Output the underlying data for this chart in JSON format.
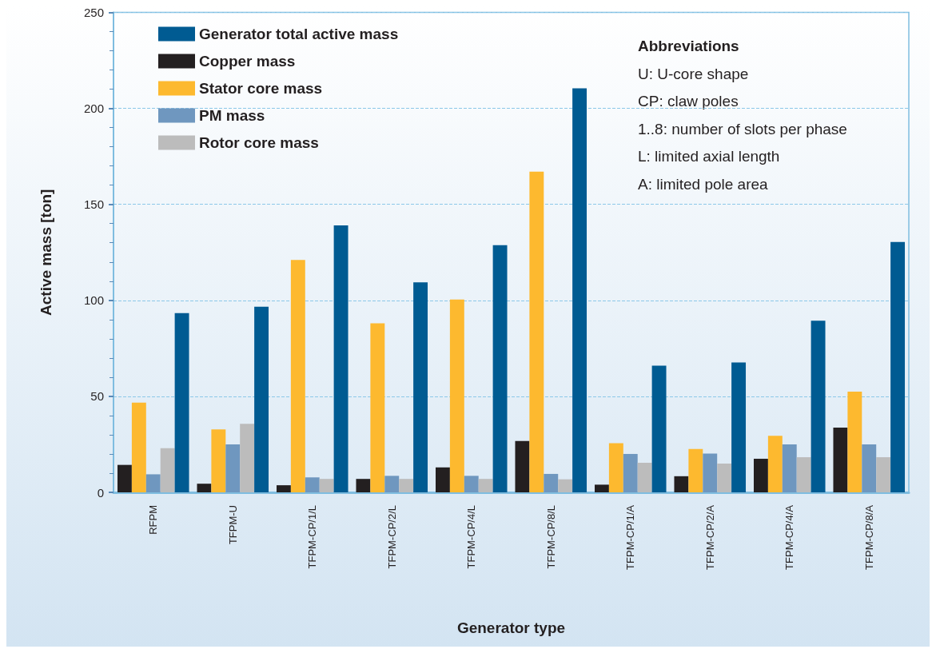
{
  "chart_data": {
    "type": "bar",
    "xlabel": "Generator type",
    "ylabel": "Active mass [ton]",
    "categories": [
      "RFPM",
      "TFPM-U",
      "TFPM-CP/1/L",
      "TFPM-CP/2/L",
      "TFPM-CP/4/L",
      "TFPM-CP/8/L",
      "TFPM-CP/1/A",
      "TFPM-CP/2/A",
      "TFPM-CP/4/A",
      "TFPM-CP/8/A"
    ],
    "series": [
      {
        "name": "Copper mass",
        "color": "#231f20",
        "values": [
          14.3,
          4.5,
          3.7,
          7,
          13,
          26.7,
          4,
          8.4,
          17.5,
          33.7
        ]
      },
      {
        "name": "Stator core mass",
        "color": "#fdb92f",
        "values": [
          46.7,
          32.8,
          121,
          88,
          100.4,
          167,
          25.6,
          22.6,
          29.5,
          52.5
        ]
      },
      {
        "name": "PM mass",
        "color": "#6f97bf",
        "values": [
          9.4,
          25,
          7.8,
          8.6,
          8.6,
          9.6,
          20,
          20.2,
          25,
          25
        ]
      },
      {
        "name": "Rotor core mass",
        "color": "#bcbcbc",
        "values": [
          23,
          35.7,
          7,
          7,
          7,
          6.8,
          15.4,
          15,
          18.3,
          18.3
        ]
      },
      {
        "name": "Generator total active mass",
        "color": "#005b92",
        "values": [
          93.4,
          96.7,
          139,
          109.4,
          128.7,
          210.5,
          66,
          67.7,
          89.4,
          130.4
        ]
      }
    ],
    "ylim": [
      0,
      250
    ],
    "yticks": [
      0,
      50,
      100,
      150,
      200,
      250
    ],
    "grid": "y",
    "legend": "top left",
    "annotations": [
      "Abbreviations",
      "U: U-core shape",
      "CP: claw poles",
      "1..8: number of slots per phase",
      "L: limited axial length",
      "A: limited pole area"
    ]
  }
}
